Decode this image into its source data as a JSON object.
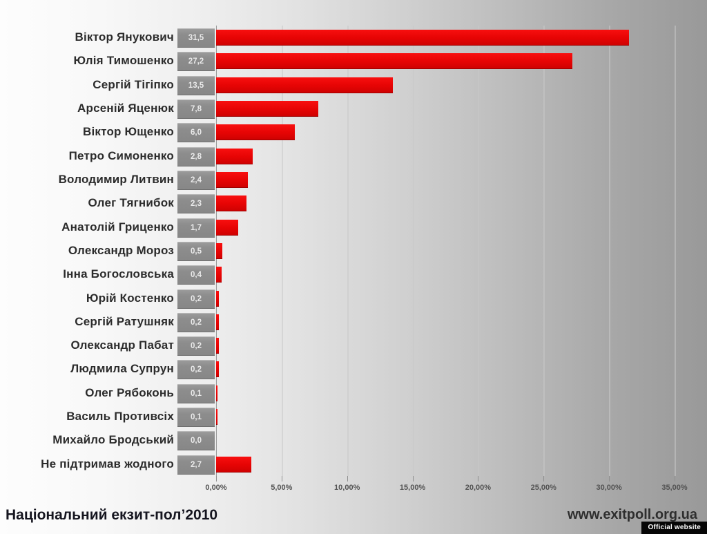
{
  "chart_data": {
    "type": "bar",
    "orientation": "horizontal",
    "title": "",
    "categories": [
      "Віктор Янукович",
      "Юлія Тимошенко",
      "Сергій Тігіпко",
      "Арсеній Яценюк",
      "Віктор Ющенко",
      "Петро Симоненко",
      "Володимир Литвин",
      "Олег Тягнибок",
      "Анатолій Гриценко",
      "Олександр Мороз",
      "Інна Богословська",
      "Юрій Костенко",
      "Сергій Ратушняк",
      "Олександр Пабат",
      "Людмила Супрун",
      "Олег Рябоконь",
      "Василь Противсіх",
      "Михайло Бродський",
      "Не підтримав жодного"
    ],
    "values": [
      31.5,
      27.2,
      13.5,
      7.8,
      6.0,
      2.8,
      2.4,
      2.3,
      1.7,
      0.5,
      0.4,
      0.2,
      0.2,
      0.2,
      0.2,
      0.1,
      0.1,
      0.0,
      2.7
    ],
    "value_labels": [
      "31,5",
      "27,2",
      "13,5",
      "7,8",
      "6,0",
      "2,8",
      "2,4",
      "2,3",
      "1,7",
      "0,5",
      "0,4",
      "0,2",
      "0,2",
      "0,2",
      "0,2",
      "0,1",
      "0,1",
      "0,0",
      "2,7"
    ],
    "x_tick_labels": [
      "0,00%",
      "5,00%",
      "10,00%",
      "15,00%",
      "20,00%",
      "25,00%",
      "30,00%",
      "35,00%"
    ],
    "xlim": [
      0,
      35
    ],
    "grid": true,
    "legend": false,
    "bar_color": "#e60404",
    "value_box_color": "#8d8d8d",
    "plot_background": "gradient-gray"
  },
  "footer": {
    "title": "Національний екзит-пол’2010",
    "website": "www.exitpoll.org.ua",
    "badge": "Official website"
  }
}
